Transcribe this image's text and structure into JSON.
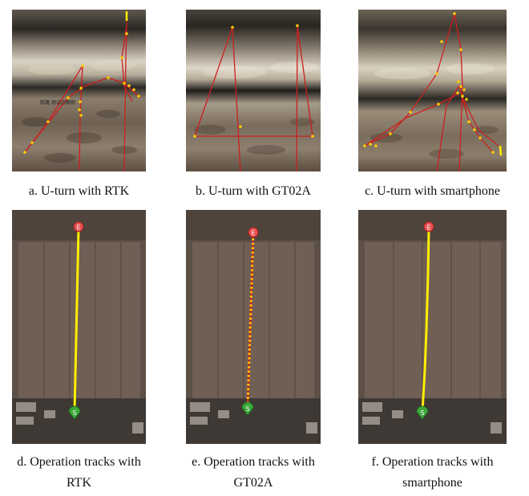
{
  "figure": {
    "row1": [
      {
        "caption": "a. U-turn with RTK",
        "overlay_text": "航路 测试点图例"
      },
      {
        "caption": "b. U-turn with GT02A"
      },
      {
        "caption": "c. U-turn with smartphone"
      }
    ],
    "row2": [
      {
        "caption": "d. Operation tracks with RTK",
        "caption_line1": "d. Operation tracks with",
        "caption_line2": "RTK"
      },
      {
        "caption": "e. Operation tracks with GT02A",
        "caption_line1": "e. Operation tracks with",
        "caption_line2": "GT02A"
      },
      {
        "caption": "f. Operation tracks with smartphone",
        "caption_line1": "f. Operation tracks with",
        "caption_line2": "smartphone"
      }
    ],
    "marker_labels": {
      "end": "E",
      "start": "S"
    },
    "colors": {
      "track_red": "#cc1f1f",
      "track_yellow": "#ffee00",
      "point_yellow": "#ffcc00",
      "end_marker": "#e85050",
      "start_marker": "#3ca83c"
    }
  }
}
